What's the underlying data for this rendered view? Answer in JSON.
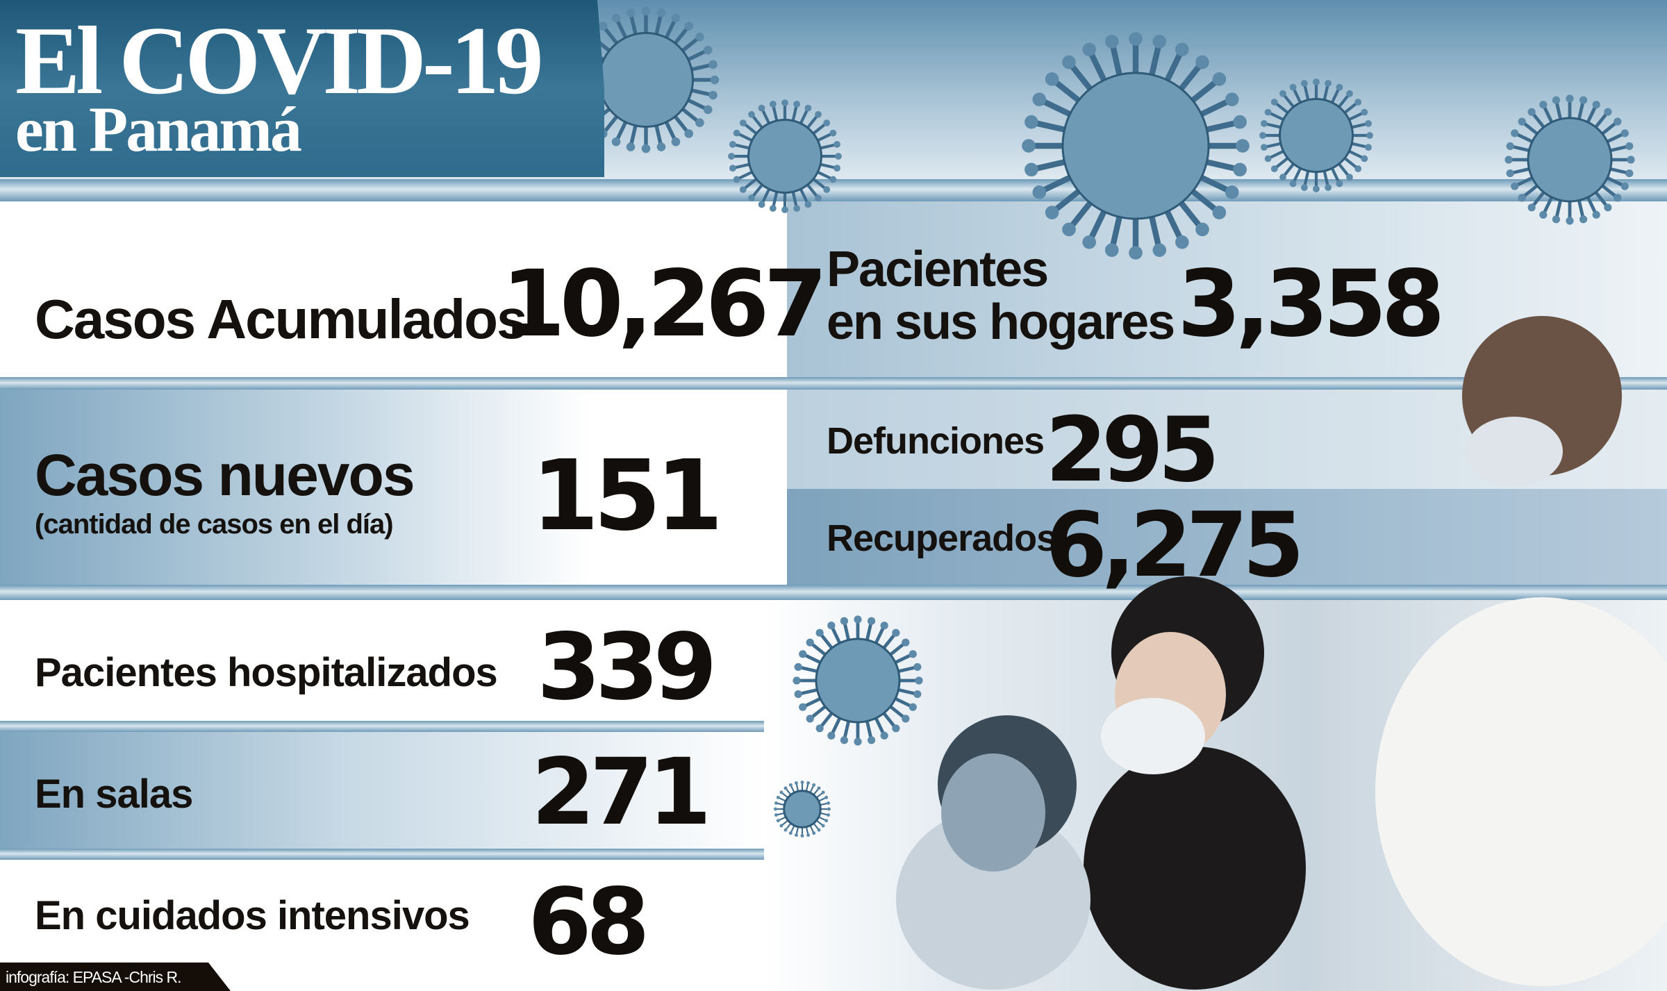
{
  "header": {
    "title_line1": "El COVID-19",
    "title_line2": "en Panamá"
  },
  "colors": {
    "header_blue": "#2f6b8c",
    "band_blue": "#7fa6c0",
    "text": "#15110e"
  },
  "stats": {
    "casos_acumulados": {
      "label": "Casos Acumulados",
      "value": "10,267"
    },
    "pacientes_hogares": {
      "label_line1": "Pacientes",
      "label_line2": "en sus hogares",
      "value": "3,358"
    },
    "casos_nuevos": {
      "label": "Casos nuevos",
      "sublabel": "(cantidad de casos en el día)",
      "value": "151"
    },
    "defunciones": {
      "label": "Defunciones",
      "value": "295"
    },
    "recuperados": {
      "label": "Recuperados",
      "value": "6,275"
    },
    "hospitalizados": {
      "label": "Pacientes hospitalizados",
      "value": "339"
    },
    "en_salas": {
      "label": "En salas",
      "value": "271"
    },
    "cuidados_intensivos": {
      "label": "En cuidados intensivos",
      "value": "68"
    }
  },
  "footer": {
    "credit": "infografía: EPASA  -Chris R."
  },
  "icons": [
    "virus-icon"
  ]
}
